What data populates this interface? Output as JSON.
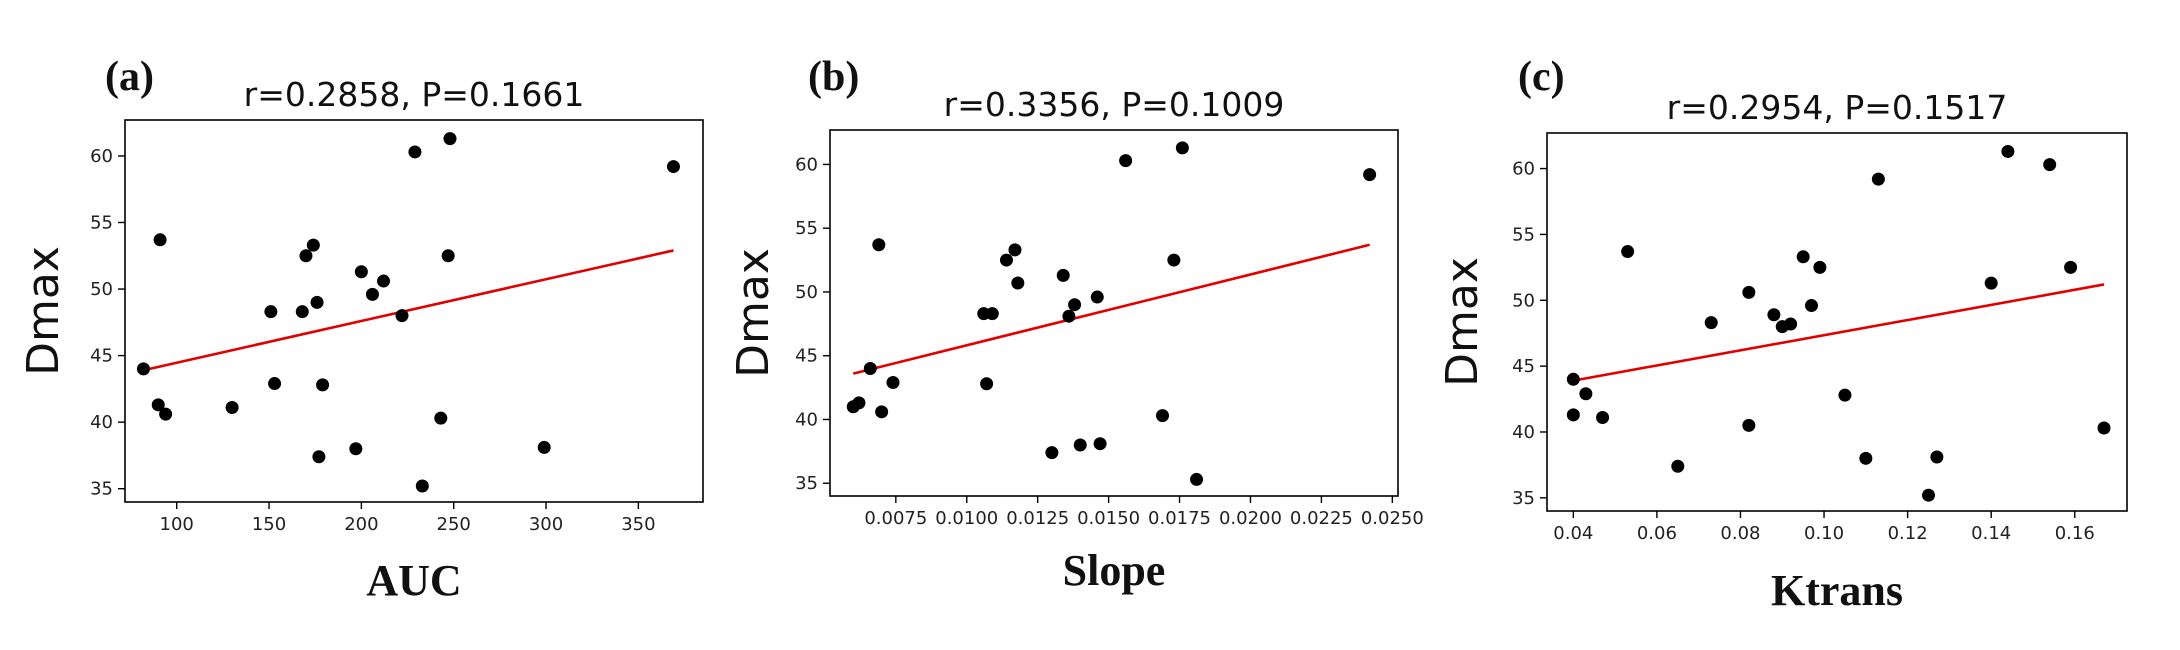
{
  "chart_data": [
    {
      "type": "scatter",
      "panel_label": "(a)",
      "title": "r=0.2858, P=0.1661",
      "xlabel": "AUC",
      "ylabel": "Dmax",
      "xlim": [
        72,
        385
      ],
      "ylim": [
        34,
        62.7
      ],
      "xticks": [
        100,
        150,
        200,
        250,
        300,
        350
      ],
      "xtick_labels": [
        "100",
        "150",
        "200",
        "250",
        "300",
        "350"
      ],
      "yticks": [
        35,
        40,
        45,
        50,
        55,
        60
      ],
      "ytick_labels": [
        "35",
        "40",
        "45",
        "50",
        "55",
        "60"
      ],
      "points": [
        [
          82,
          44.0
        ],
        [
          90,
          41.3
        ],
        [
          91,
          53.7
        ],
        [
          94,
          40.6
        ],
        [
          130,
          41.1
        ],
        [
          151,
          48.3
        ],
        [
          153,
          42.9
        ],
        [
          168,
          48.3
        ],
        [
          170,
          52.5
        ],
        [
          174,
          53.3
        ],
        [
          176,
          49.0
        ],
        [
          177,
          37.4
        ],
        [
          179,
          42.8
        ],
        [
          197,
          38.0
        ],
        [
          200,
          51.3
        ],
        [
          206,
          49.6
        ],
        [
          212,
          50.6
        ],
        [
          222,
          48.0
        ],
        [
          229,
          60.3
        ],
        [
          233,
          35.2
        ],
        [
          243,
          40.3
        ],
        [
          247,
          52.5
        ],
        [
          248,
          61.3
        ],
        [
          299,
          38.1
        ],
        [
          369,
          59.2
        ]
      ],
      "fit_line": [
        [
          82,
          43.9
        ],
        [
          369,
          52.9
        ]
      ],
      "point_color": "#000000",
      "line_color": "#e00000"
    },
    {
      "type": "scatter",
      "panel_label": "(b)",
      "title": "r=0.3356, P=0.1009",
      "xlabel": "Slope",
      "ylabel": "Dmax",
      "xlim": [
        0.00518,
        0.0252
      ],
      "ylim": [
        34,
        62.7
      ],
      "xticks": [
        0.0075,
        0.01,
        0.0125,
        0.015,
        0.0175,
        0.02,
        0.0225,
        0.025
      ],
      "xtick_labels": [
        "0.0075",
        "0.0100",
        "0.0125",
        "0.0150",
        "0.0175",
        "0.0200",
        "0.0225",
        "0.0250"
      ],
      "yticks": [
        35,
        40,
        45,
        50,
        55,
        60
      ],
      "ytick_labels": [
        "35",
        "40",
        "45",
        "50",
        "55",
        "60"
      ],
      "points": [
        [
          0.006,
          41.0
        ],
        [
          0.0062,
          41.3
        ],
        [
          0.0066,
          44.0
        ],
        [
          0.0069,
          53.7
        ],
        [
          0.007,
          40.6
        ],
        [
          0.0074,
          42.9
        ],
        [
          0.0106,
          48.3
        ],
        [
          0.0107,
          42.8
        ],
        [
          0.0109,
          48.3
        ],
        [
          0.0114,
          52.5
        ],
        [
          0.0117,
          53.3
        ],
        [
          0.0118,
          50.7
        ],
        [
          0.013,
          37.4
        ],
        [
          0.0134,
          51.3
        ],
        [
          0.0136,
          48.1
        ],
        [
          0.0138,
          49.0
        ],
        [
          0.014,
          38.0
        ],
        [
          0.0146,
          49.6
        ],
        [
          0.0147,
          38.1
        ],
        [
          0.0156,
          60.3
        ],
        [
          0.0169,
          40.3
        ],
        [
          0.0173,
          52.5
        ],
        [
          0.0176,
          61.3
        ],
        [
          0.0181,
          35.3
        ],
        [
          0.0242,
          59.2
        ]
      ],
      "fit_line": [
        [
          0.006,
          43.6
        ],
        [
          0.0242,
          53.7
        ]
      ],
      "point_color": "#000000",
      "line_color": "#e00000"
    },
    {
      "type": "scatter",
      "panel_label": "(c)",
      "title": "r=0.2954, P=0.1517",
      "xlabel": "Ktrans",
      "ylabel": "Dmax",
      "xlim": [
        0.0337,
        0.1725
      ],
      "ylim": [
        34,
        62.7
      ],
      "xticks": [
        0.04,
        0.06,
        0.08,
        0.1,
        0.12,
        0.14,
        0.16
      ],
      "xtick_labels": [
        "0.04",
        "0.06",
        "0.08",
        "0.10",
        "0.12",
        "0.14",
        "0.16"
      ],
      "yticks": [
        35,
        40,
        45,
        50,
        55,
        60
      ],
      "ytick_labels": [
        "35",
        "40",
        "45",
        "50",
        "55",
        "60"
      ],
      "points": [
        [
          0.04,
          44.0
        ],
        [
          0.04,
          41.3
        ],
        [
          0.043,
          42.9
        ],
        [
          0.047,
          41.1
        ],
        [
          0.053,
          53.7
        ],
        [
          0.065,
          37.4
        ],
        [
          0.073,
          48.3
        ],
        [
          0.082,
          50.6
        ],
        [
          0.082,
          40.5
        ],
        [
          0.088,
          48.9
        ],
        [
          0.09,
          48.0
        ],
        [
          0.092,
          48.2
        ],
        [
          0.095,
          53.3
        ],
        [
          0.097,
          49.6
        ],
        [
          0.099,
          52.5
        ],
        [
          0.105,
          42.8
        ],
        [
          0.11,
          38.0
        ],
        [
          0.113,
          59.2
        ],
        [
          0.125,
          35.2
        ],
        [
          0.127,
          38.1
        ],
        [
          0.14,
          51.3
        ],
        [
          0.144,
          61.3
        ],
        [
          0.154,
          60.3
        ],
        [
          0.159,
          52.5
        ],
        [
          0.167,
          40.3
        ]
      ],
      "fit_line": [
        [
          0.04,
          43.9
        ],
        [
          0.167,
          51.2
        ]
      ],
      "point_color": "#000000",
      "line_color": "#e00000"
    }
  ]
}
